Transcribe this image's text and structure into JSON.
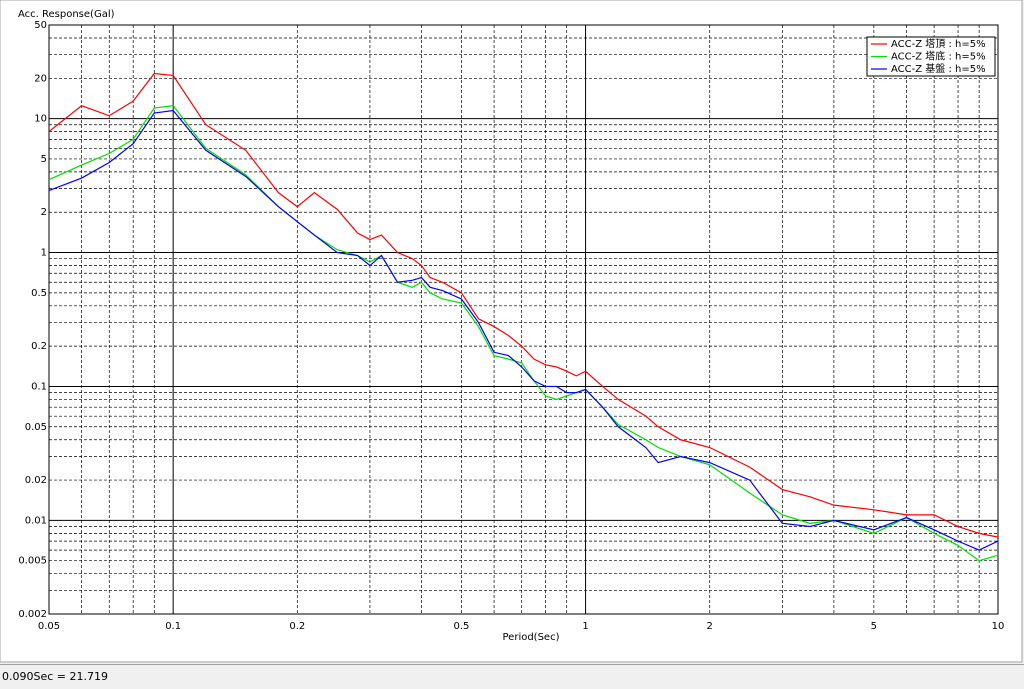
{
  "chart_data": {
    "type": "line",
    "y_label": "Acc. Response(Gal)",
    "x_label": "Period(Sec)",
    "log_x": true,
    "log_y": true,
    "grid": true,
    "xlim": [
      0.05,
      10
    ],
    "ylim": [
      0.002,
      50
    ],
    "xticks": [
      0.05,
      0.1,
      0.2,
      0.5,
      1,
      2,
      5,
      10
    ],
    "yticks": [
      0.002,
      0.005,
      0.01,
      0.02,
      0.05,
      0.1,
      0.2,
      0.5,
      1,
      2,
      5,
      10,
      20,
      50
    ],
    "x_major_grid": [
      0.1,
      1
    ],
    "x_minor_grid": [
      0.06,
      0.07,
      0.08,
      0.09,
      0.2,
      0.3,
      0.4,
      0.5,
      0.6,
      0.7,
      0.8,
      0.9,
      2,
      3,
      4,
      5,
      6,
      7,
      8,
      9
    ],
    "y_major_grid": [
      0.01,
      0.1,
      1,
      10
    ],
    "y_minor_grid": [
      0.003,
      0.004,
      0.005,
      0.006,
      0.007,
      0.008,
      0.009,
      0.02,
      0.03,
      0.04,
      0.05,
      0.06,
      0.07,
      0.08,
      0.09,
      0.2,
      0.3,
      0.4,
      0.5,
      0.6,
      0.7,
      0.8,
      0.9,
      2,
      3,
      4,
      5,
      6,
      7,
      8,
      9,
      20,
      30,
      40
    ],
    "legend": "upper right",
    "x": [
      0.05,
      0.06,
      0.07,
      0.08,
      0.09,
      0.1,
      0.12,
      0.15,
      0.18,
      0.2,
      0.22,
      0.25,
      0.28,
      0.3,
      0.32,
      0.35,
      0.38,
      0.4,
      0.42,
      0.45,
      0.5,
      0.55,
      0.6,
      0.65,
      0.7,
      0.75,
      0.8,
      0.85,
      0.9,
      0.95,
      1.0,
      1.1,
      1.2,
      1.4,
      1.5,
      1.7,
      2.0,
      2.5,
      3.0,
      3.5,
      4.0,
      5.0,
      6.0,
      7.0,
      8.0,
      9.0,
      10
    ],
    "series": [
      {
        "name": "ACC-Z 塔頂 : h=5%",
        "color": "#ff0000",
        "values": [
          8,
          12.5,
          10.5,
          13.5,
          21.7,
          21,
          9,
          5.8,
          2.8,
          2.2,
          2.8,
          2.1,
          1.4,
          1.25,
          1.35,
          1.0,
          0.9,
          0.8,
          0.65,
          0.6,
          0.5,
          0.32,
          0.28,
          0.24,
          0.2,
          0.16,
          0.145,
          0.14,
          0.13,
          0.12,
          0.13,
          0.1,
          0.08,
          0.06,
          0.05,
          0.04,
          0.035,
          0.025,
          0.017,
          0.015,
          0.013,
          0.012,
          0.011,
          0.011,
          0.009,
          0.008,
          0.0075
        ]
      },
      {
        "name": "ACC-Z 塔底 : h=5%",
        "color": "#00dd00",
        "values": [
          3.5,
          4.5,
          5.5,
          7,
          12,
          12.5,
          6,
          3.8,
          2.2,
          1.7,
          1.35,
          1.05,
          0.95,
          0.85,
          0.95,
          0.6,
          0.55,
          0.6,
          0.5,
          0.45,
          0.42,
          0.28,
          0.17,
          0.16,
          0.15,
          0.11,
          0.085,
          0.08,
          0.085,
          0.09,
          0.095,
          0.07,
          0.052,
          0.04,
          0.035,
          0.03,
          0.026,
          0.016,
          0.011,
          0.0095,
          0.01,
          0.008,
          0.0105,
          0.008,
          0.0065,
          0.005,
          0.0055
        ]
      },
      {
        "name": "ACC-Z 基盤 : h=5%",
        "color": "#0000ff",
        "values": [
          2.9,
          3.6,
          4.7,
          6.5,
          11,
          11.5,
          5.8,
          3.7,
          2.2,
          1.7,
          1.35,
          1.0,
          0.95,
          0.8,
          0.95,
          0.6,
          0.62,
          0.65,
          0.55,
          0.52,
          0.45,
          0.3,
          0.18,
          0.17,
          0.14,
          0.11,
          0.1,
          0.1,
          0.09,
          0.09,
          0.095,
          0.07,
          0.05,
          0.035,
          0.027,
          0.03,
          0.027,
          0.02,
          0.0095,
          0.009,
          0.01,
          0.0085,
          0.0105,
          0.0085,
          0.007,
          0.006,
          0.007
        ]
      }
    ]
  },
  "status": "0.090Sec = 21.719"
}
